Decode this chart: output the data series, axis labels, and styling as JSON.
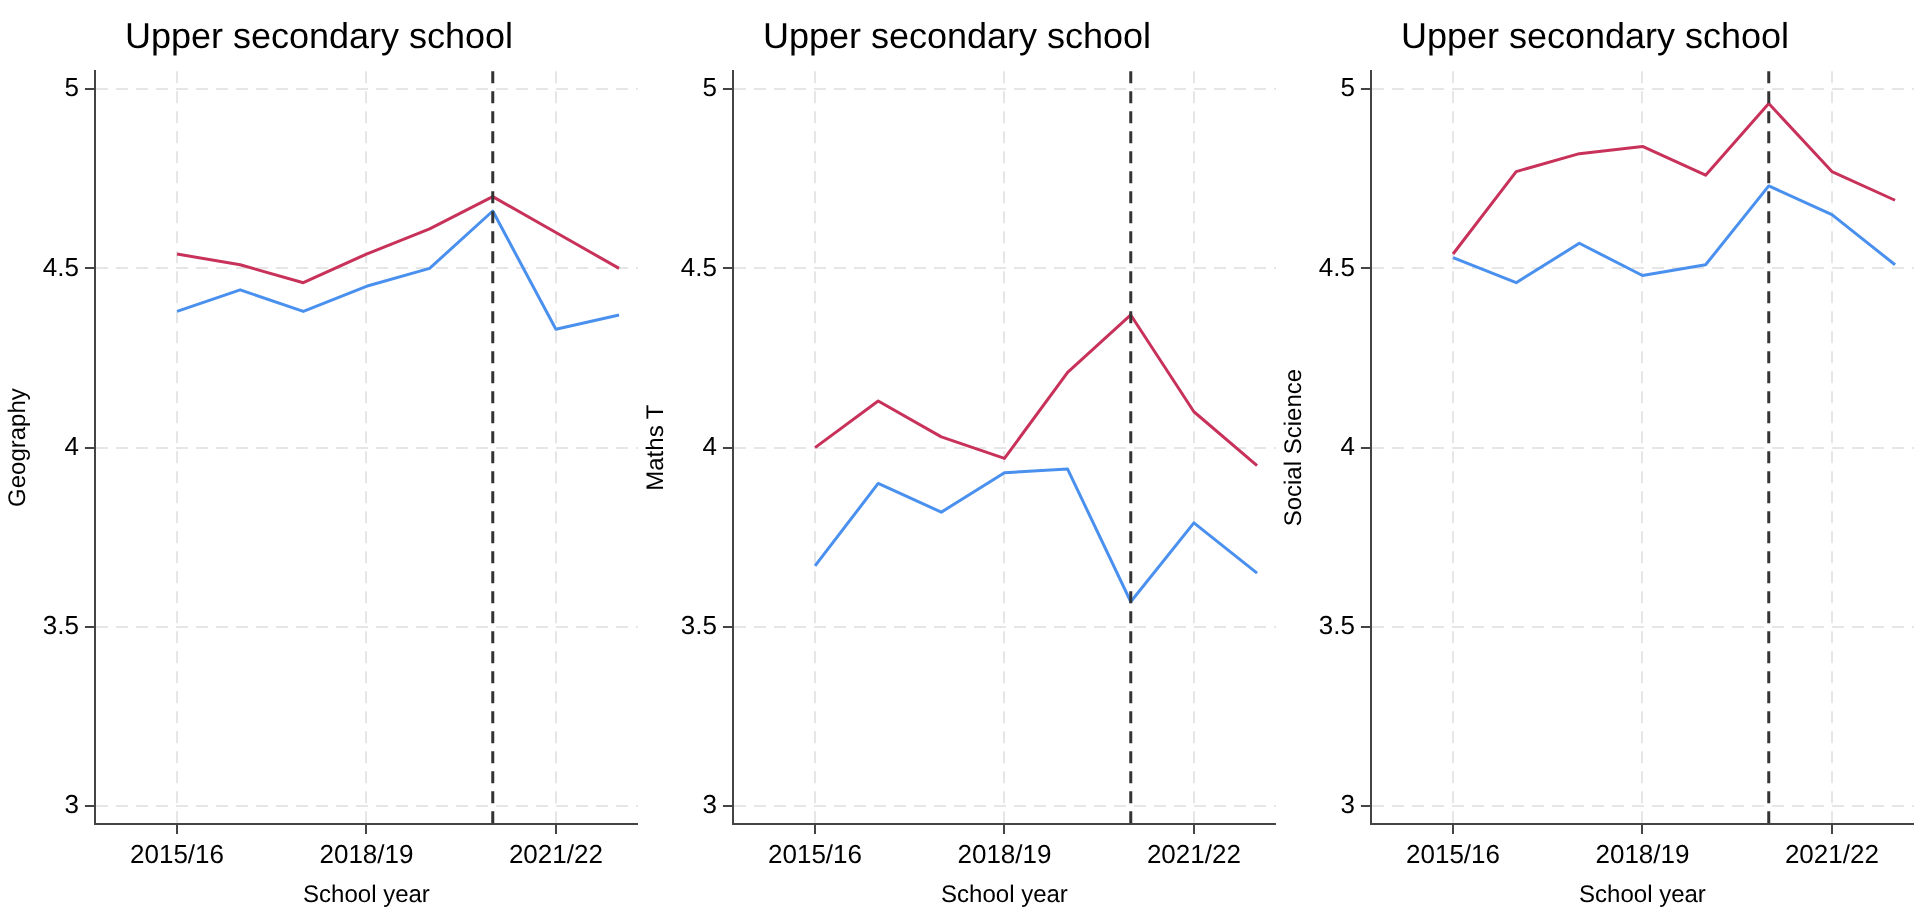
{
  "chart_data": [
    {
      "type": "line",
      "title": "Upper secondary school",
      "xlabel": "School year",
      "ylabel": "Geography",
      "categories": [
        "2015/16",
        null,
        null,
        "2018/19",
        null,
        null,
        "2021/22",
        null
      ],
      "series": [
        {
          "color": "#c8325a",
          "values": [
            4.54,
            4.51,
            4.46,
            4.54,
            4.61,
            4.7,
            4.6,
            4.5
          ]
        },
        {
          "color": "#4a90ee",
          "values": [
            4.38,
            4.44,
            4.38,
            4.45,
            4.5,
            4.66,
            4.33,
            4.37
          ]
        }
      ],
      "ylim": [
        2.95,
        5.05
      ],
      "yticks": [
        3,
        3.5,
        4,
        4.5,
        5
      ],
      "grid": true,
      "line_style": "solid",
      "marker": "none"
    },
    {
      "type": "line",
      "title": "Upper secondary school",
      "xlabel": "School year",
      "ylabel": "Maths T",
      "categories": [
        "2015/16",
        null,
        null,
        "2018/19",
        null,
        null,
        "2021/22",
        null
      ],
      "series": [
        {
          "color": "#c8325a",
          "values": [
            4.0,
            4.13,
            4.03,
            3.97,
            4.21,
            4.37,
            4.1,
            3.95
          ]
        },
        {
          "color": "#4a90ee",
          "values": [
            3.67,
            3.9,
            3.82,
            3.93,
            3.94,
            3.57,
            3.79,
            3.65
          ]
        }
      ],
      "ylim": [
        2.95,
        5.05
      ],
      "yticks": [
        3,
        3.5,
        4,
        4.5,
        5
      ],
      "grid": true,
      "line_style": "solid",
      "marker": "none"
    },
    {
      "type": "line",
      "title": "Upper secondary school",
      "xlabel": "School year",
      "ylabel": "Social Science",
      "categories": [
        "2015/16",
        null,
        null,
        "2018/19",
        null,
        null,
        "2021/22",
        null
      ],
      "series": [
        {
          "color": "#c8325a",
          "values": [
            4.54,
            4.77,
            4.82,
            4.84,
            4.76,
            4.96,
            4.77,
            4.69
          ]
        },
        {
          "color": "#4a90ee",
          "values": [
            4.53,
            4.46,
            4.57,
            4.48,
            4.51,
            4.73,
            4.65,
            4.51
          ]
        }
      ],
      "ylim": [
        2.95,
        5.05
      ],
      "yticks": [
        3,
        3.5,
        4,
        4.5,
        5
      ],
      "grid": true,
      "line_style": "solid",
      "marker": "none"
    }
  ]
}
